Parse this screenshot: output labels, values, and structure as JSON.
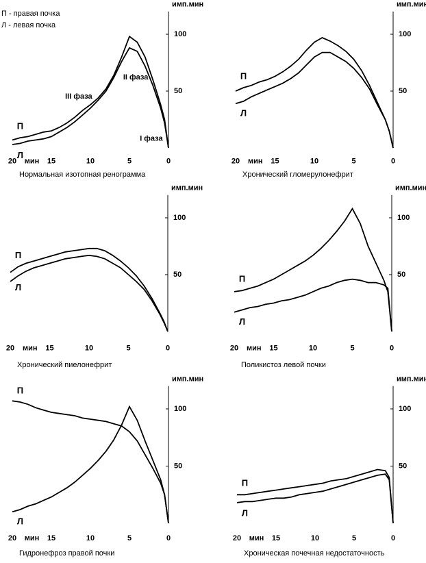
{
  "legend_note": [
    "П - правая почка",
    "Л - левая почка"
  ],
  "chart_data": [
    {
      "type": "line",
      "title": "Нормальная изотопная ренограмма",
      "y_label": "имп.мин",
      "x_label": "мин",
      "xlim": [
        20,
        0
      ],
      "ylim": [
        0,
        120
      ],
      "xticks": [
        20,
        15,
        10,
        5,
        0
      ],
      "yticks": [
        50,
        100
      ],
      "x": [
        20,
        19,
        18,
        17,
        16,
        15,
        14,
        13,
        12,
        11,
        10,
        9,
        8,
        7,
        6,
        5,
        4,
        3,
        2,
        1,
        0.5,
        0
      ],
      "annotations": [
        "III фаза",
        "II фаза",
        "I фаза"
      ],
      "series": [
        {
          "name": "П",
          "color": "#000000",
          "values": [
            7,
            9,
            10,
            12,
            14,
            15,
            18,
            22,
            27,
            33,
            38,
            44,
            52,
            64,
            80,
            98,
            93,
            80,
            60,
            38,
            25,
            0
          ]
        },
        {
          "name": "Л",
          "color": "#000000",
          "values": [
            3,
            4,
            6,
            7,
            8,
            10,
            14,
            18,
            23,
            29,
            35,
            42,
            50,
            62,
            76,
            88,
            85,
            72,
            55,
            35,
            22,
            0
          ]
        }
      ]
    },
    {
      "type": "line",
      "title": "Хронический гломерулонефрит",
      "y_label": "имп.мин",
      "x_label": "мин",
      "xlim": [
        20,
        0
      ],
      "ylim": [
        0,
        120
      ],
      "xticks": [
        20,
        15,
        10,
        5,
        0
      ],
      "yticks": [
        50,
        100
      ],
      "x": [
        20,
        19,
        18,
        17,
        16,
        15,
        14,
        13,
        12,
        11,
        10,
        9,
        8,
        7,
        6,
        5,
        4,
        3,
        2,
        1,
        0.5,
        0
      ],
      "series": [
        {
          "name": "П",
          "color": "#000000",
          "values": [
            50,
            53,
            55,
            58,
            60,
            63,
            67,
            72,
            78,
            86,
            93,
            97,
            94,
            90,
            85,
            78,
            68,
            55,
            40,
            25,
            15,
            0
          ]
        },
        {
          "name": "Л",
          "color": "#000000",
          "values": [
            39,
            41,
            45,
            48,
            51,
            54,
            57,
            61,
            66,
            73,
            80,
            84,
            84,
            80,
            76,
            70,
            62,
            52,
            38,
            25,
            15,
            0
          ]
        }
      ]
    },
    {
      "type": "line",
      "title": "Хронический пиелонефрит",
      "y_label": "имп.мин",
      "x_label": "мин",
      "xlim": [
        20,
        0
      ],
      "ylim": [
        0,
        120
      ],
      "xticks": [
        20,
        15,
        10,
        5,
        0
      ],
      "yticks": [
        50,
        100
      ],
      "x": [
        20,
        19,
        18,
        17,
        16,
        15,
        14,
        13,
        12,
        11,
        10,
        9,
        8,
        7,
        6,
        5,
        4,
        3,
        2,
        1,
        0.5,
        0
      ],
      "series": [
        {
          "name": "П",
          "color": "#000000",
          "values": [
            52,
            57,
            60,
            62,
            64,
            66,
            68,
            70,
            71,
            72,
            73,
            73,
            71,
            67,
            62,
            56,
            49,
            40,
            29,
            16,
            9,
            0
          ]
        },
        {
          "name": "Л",
          "color": "#000000",
          "values": [
            44,
            49,
            53,
            56,
            58,
            60,
            62,
            64,
            65,
            66,
            67,
            66,
            64,
            60,
            56,
            50,
            44,
            37,
            27,
            15,
            8,
            0
          ]
        }
      ]
    },
    {
      "type": "line",
      "title": "Поликистоз левой почки",
      "y_label": "имп.мин",
      "x_label": "мин",
      "xlim": [
        20,
        0
      ],
      "ylim": [
        0,
        120
      ],
      "xticks": [
        20,
        15,
        10,
        5,
        0
      ],
      "yticks": [
        50,
        100
      ],
      "x": [
        20,
        19,
        18,
        17,
        16,
        15,
        14,
        13,
        12,
        11,
        10,
        9,
        8,
        7,
        6,
        5,
        4,
        3,
        2,
        1,
        0.5,
        0
      ],
      "series": [
        {
          "name": "П",
          "color": "#000000",
          "values": [
            35,
            36,
            38,
            40,
            43,
            46,
            50,
            54,
            58,
            62,
            67,
            73,
            80,
            88,
            97,
            108,
            95,
            75,
            60,
            45,
            35,
            0
          ]
        },
        {
          "name": "Л",
          "color": "#000000",
          "values": [
            17,
            19,
            21,
            22,
            24,
            25,
            27,
            28,
            30,
            32,
            35,
            38,
            40,
            43,
            45,
            46,
            45,
            43,
            43,
            41,
            38,
            0
          ]
        }
      ]
    },
    {
      "type": "line",
      "title": "Гидронефроз правой почки",
      "y_label": "имп.мин",
      "x_label": "мин",
      "xlim": [
        20,
        0
      ],
      "ylim": [
        0,
        120
      ],
      "xticks": [
        20,
        15,
        10,
        5,
        0
      ],
      "yticks": [
        50,
        100
      ],
      "x": [
        20,
        19,
        18,
        17,
        16,
        15,
        14,
        13,
        12,
        11,
        10,
        9,
        8,
        7,
        6,
        5,
        4,
        3,
        2,
        1,
        0.5,
        0
      ],
      "series": [
        {
          "name": "П",
          "color": "#000000",
          "values": [
            107,
            106,
            104,
            101,
            99,
            97,
            96,
            95,
            94,
            92,
            91,
            90,
            89,
            87,
            85,
            80,
            72,
            60,
            48,
            35,
            25,
            0
          ]
        },
        {
          "name": "Л",
          "color": "#000000",
          "values": [
            10,
            12,
            15,
            17,
            20,
            23,
            27,
            31,
            36,
            42,
            48,
            55,
            63,
            73,
            86,
            102,
            90,
            72,
            55,
            38,
            25,
            0
          ]
        }
      ]
    },
    {
      "type": "line",
      "title": "Хроническая почечная недостаточность",
      "y_label": "имп.мин",
      "x_label": "мин",
      "xlim": [
        20,
        0
      ],
      "ylim": [
        0,
        120
      ],
      "xticks": [
        20,
        15,
        10,
        5,
        0
      ],
      "yticks": [
        50,
        100
      ],
      "x": [
        20,
        19,
        18,
        17,
        16,
        15,
        14,
        13,
        12,
        11,
        10,
        9,
        8,
        7,
        6,
        5,
        4,
        3,
        2,
        1,
        0.5,
        0
      ],
      "series": [
        {
          "name": "П",
          "color": "#000000",
          "values": [
            25,
            25,
            26,
            27,
            28,
            29,
            30,
            31,
            32,
            33,
            34,
            35,
            37,
            38,
            39,
            41,
            43,
            45,
            47,
            46,
            40,
            0
          ]
        },
        {
          "name": "Л",
          "color": "#000000",
          "values": [
            18,
            19,
            19,
            20,
            21,
            22,
            22,
            23,
            25,
            26,
            27,
            28,
            30,
            32,
            34,
            36,
            38,
            40,
            42,
            43,
            38,
            0
          ]
        }
      ]
    }
  ]
}
